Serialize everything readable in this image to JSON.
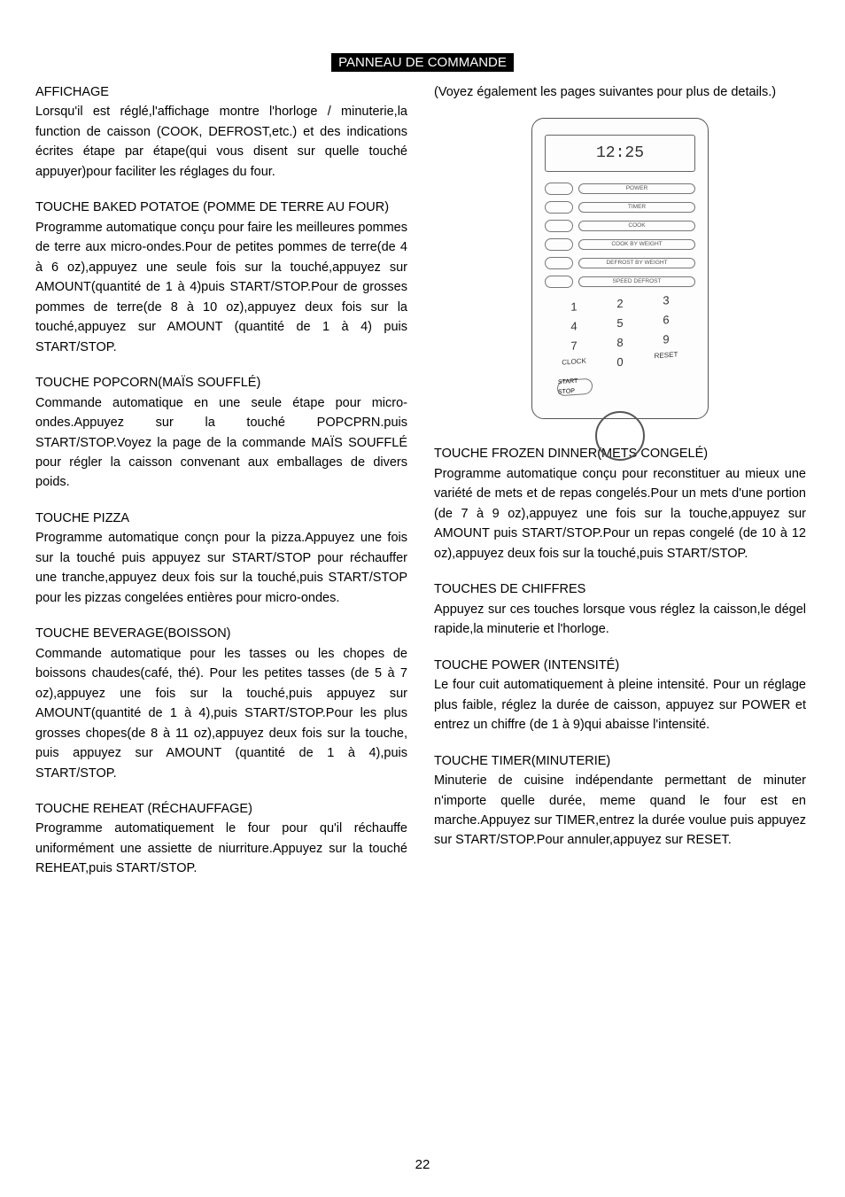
{
  "title": "PANNEAU DE COMMANDE",
  "page_number": "22",
  "panel_figure": {
    "lcd": "12:25",
    "row_labels": [
      "POWER",
      "TIMER",
      "COOK",
      "COOK BY WEIGHT",
      "DEFROST BY WEIGHT",
      "SPEED DEFROST"
    ],
    "keypad": [
      "1",
      "2",
      "3",
      "4",
      "5",
      "6",
      "7",
      "8",
      "9",
      "CLOCK",
      "0",
      "RESET"
    ],
    "startstop": "START STOP"
  },
  "left": {
    "s1_head": "AFFICHAGE",
    "s1_body": "Lorsqu'il est réglé,l'affichage montre l'horloge / minuterie,la function de caisson (COOK, DEFROST,etc.) et des indications écrites étape par étape(qui vous disent sur quelle touché appuyer)pour faciliter les réglages du four.",
    "s2_head": "TOUCHE BAKED POTATOE (POMME DE TERRE AU FOUR)",
    "s2_body": "Programme automatique conçu pour faire les meilleures pommes de terre aux micro-ondes.Pour de petites pommes de terre(de 4 à 6 oz),appuyez une seule fois sur la touché,appuyez sur AMOUNT(quantité de 1 à 4)puis START/STOP.Pour de grosses pommes de terre(de 8 à 10 oz),appuyez deux fois sur la touché,appuyez sur AMOUNT (quantité de 1 à 4) puis START/STOP.",
    "s3_head": "TOUCHE POPCORN(MAÏS SOUFFLÉ)",
    "s3_body": "Commande automatique en une seule étape pour micro-ondes.Appuyez sur la touché POPCPRN.puis START/STOP.Voyez la page de la commande MAÏS SOUFFLÉ pour régler la caisson convenant aux emballages de divers poids.",
    "s4_head": "TOUCHE PIZZA",
    "s4_body": "Programme automatique conçn pour la pizza.Appuyez une fois sur la touché puis appuyez sur START/STOP pour réchauffer une tranche,appuyez deux fois sur la touché,puis START/STOP pour les pizzas congelées entières pour micro-ondes.",
    "s5_head": "TOUCHE BEVERAGE(BOISSON)",
    "s5_body": "Commande automatique pour les tasses ou les chopes de boissons chaudes(café, thé). Pour les petites tasses (de 5 à 7 oz),appuyez une fois sur la touché,puis appuyez sur AMOUNT(quantité de 1 à 4),puis START/STOP.Pour les plus grosses chopes(de 8 à 11 oz),appuyez deux fois sur la touche, puis appuyez sur AMOUNT (quantité de 1 à 4),puis START/STOP.",
    "s6_head": "TOUCHE REHEAT (RÉCHAUFFAGE)",
    "s6_body": "Programme automatiquement le four pour qu'il réchauffe uniformément une assiette de niurriture.Appuyez sur la touché REHEAT,puis START/STOP."
  },
  "right": {
    "intro": "(Voyez également les pages suivantes pour plus de details.)",
    "s1_head": "TOUCHE FROZEN DINNER(METS CONGELÉ)",
    "s1_body": "Programme automatique conçu pour reconstituer au mieux une variété de mets et de repas congelés.Pour un mets d'une portion (de 7 à 9 oz),appuyez une fois sur la touche,appuyez sur AMOUNT puis START/STOP.Pour un repas congelé (de 10 à 12 oz),appuyez deux fois sur la touché,puis START/STOP.",
    "s2_head": "TOUCHES DE CHIFFRES",
    "s2_body": "Appuyez sur ces touches lorsque vous réglez la caisson,le dégel rapide,la minuterie et l'horloge.",
    "s3_head": "TOUCHE POWER (INTENSITÉ)",
    "s3_body": "Le four cuit automatiquement à pleine intensité. Pour un réglage plus faible, réglez la durée de caisson, appuyez sur POWER et entrez un chiffre (de 1 à 9)qui abaisse l'intensité.",
    "s4_head": "TOUCHE TIMER(MINUTERIE)",
    "s4_body": "Minuterie de cuisine indépendante permettant de minuter n'importe quelle durée, meme quand le four est en marche.Appuyez sur TIMER,entrez la durée voulue puis appuyez sur START/STOP.Pour annuler,appuyez sur RESET."
  }
}
